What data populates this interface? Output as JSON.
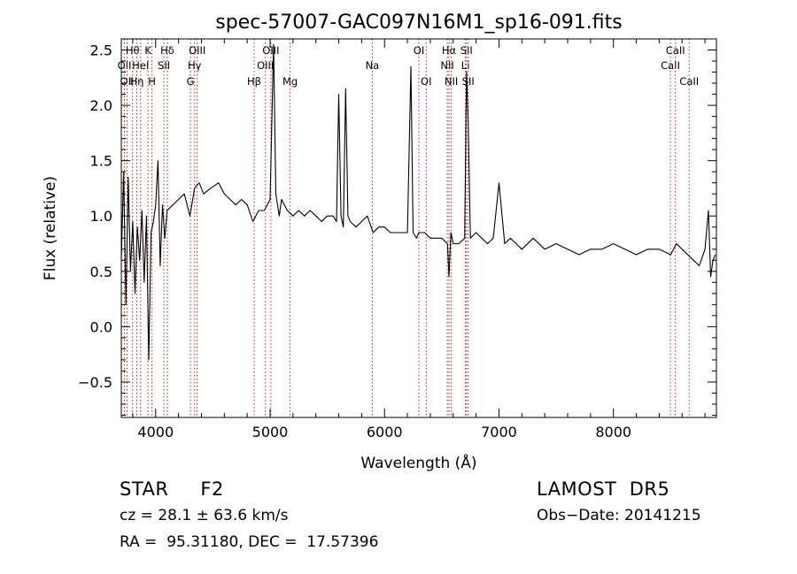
{
  "chart_data": {
    "type": "line",
    "title": "spec-57007-GAC097N16M1_sp16-091.fits",
    "xlabel": "Wavelength (Å)",
    "ylabel": "Flux (relative)",
    "xlim": [
      3700,
      8900
    ],
    "ylim": [
      -0.82,
      2.6
    ],
    "x_ticks": [
      4000,
      5000,
      6000,
      7000,
      8000
    ],
    "y_ticks": [
      -0.5,
      0.0,
      0.5,
      1.0,
      1.5,
      2.0,
      2.5
    ],
    "x_tick_labels": [
      "4000",
      "5000",
      "6000",
      "7000",
      "8000"
    ],
    "y_tick_labels": [
      "−0.5",
      "0.0",
      "0.5",
      "1.0",
      "1.5",
      "2.0",
      "2.5"
    ],
    "line_color": "#000000",
    "marker_color": "#b22222",
    "series": [
      {
        "x": [
          3700,
          3720,
          3740,
          3760,
          3780,
          3800,
          3820,
          3840,
          3860,
          3880,
          3900,
          3920,
          3940,
          3960,
          3980,
          4000,
          4020,
          4040,
          4060,
          4080,
          4100,
          4150,
          4200,
          4250,
          4300,
          4340,
          4380,
          4420,
          4480,
          4550,
          4600,
          4650,
          4700,
          4750,
          4800,
          4850,
          4900,
          4950,
          5000,
          5030,
          5050,
          5080,
          5100,
          5150,
          5200,
          5250,
          5300,
          5350,
          5400,
          5450,
          5500,
          5550,
          5580,
          5600,
          5620,
          5640,
          5660,
          5680,
          5700,
          5750,
          5800,
          5850,
          5900,
          5950,
          6000,
          6050,
          6100,
          6150,
          6200,
          6230,
          6250,
          6280,
          6300,
          6350,
          6400,
          6450,
          6500,
          6550,
          6563,
          6580,
          6600,
          6650,
          6700,
          6716,
          6731,
          6750,
          6800,
          6850,
          6900,
          6950,
          7000,
          7050,
          7100,
          7150,
          7200,
          7300,
          7400,
          7500,
          7600,
          7700,
          7800,
          7900,
          8000,
          8100,
          8200,
          8300,
          8400,
          8500,
          8550,
          8600,
          8650,
          8700,
          8750,
          8800,
          8830,
          8850,
          8870,
          8890
        ],
        "y": [
          0.6,
          1.4,
          0.2,
          1.35,
          0.5,
          0.95,
          0.3,
          0.9,
          0.6,
          1.05,
          0.4,
          1.0,
          -0.3,
          0.85,
          0.95,
          1.1,
          1.5,
          0.55,
          1.1,
          0.8,
          1.05,
          1.1,
          1.15,
          1.2,
          1.0,
          1.25,
          1.3,
          1.2,
          1.25,
          1.3,
          1.2,
          1.15,
          1.1,
          1.15,
          1.1,
          0.95,
          1.05,
          1.05,
          1.15,
          2.55,
          1.2,
          1.0,
          1.15,
          1.05,
          1.0,
          1.05,
          1.0,
          1.05,
          1.0,
          0.95,
          1.0,
          1.0,
          0.95,
          2.1,
          1.0,
          0.9,
          2.15,
          1.0,
          0.95,
          0.9,
          0.95,
          1.0,
          0.85,
          0.9,
          0.9,
          0.85,
          0.85,
          0.85,
          0.85,
          2.35,
          0.85,
          0.8,
          0.85,
          0.85,
          0.8,
          0.8,
          0.8,
          0.75,
          0.45,
          0.85,
          0.75,
          0.75,
          0.8,
          2.3,
          1.85,
          0.8,
          0.85,
          0.8,
          0.75,
          0.8,
          1.3,
          0.75,
          0.8,
          0.75,
          0.7,
          0.8,
          0.7,
          0.75,
          0.7,
          0.65,
          0.7,
          0.7,
          0.75,
          0.7,
          0.65,
          0.7,
          0.7,
          0.65,
          0.75,
          0.7,
          0.65,
          0.6,
          0.55,
          0.7,
          1.05,
          0.45,
          0.6,
          0.65
        ]
      }
    ],
    "lines": [
      {
        "x": 3727,
        "labels": [
          "OII"
        ],
        "row": 2
      },
      {
        "x": 3750,
        "labels": [
          "OII"
        ],
        "row": 3
      },
      {
        "x": 3798,
        "labels": [
          "Hθ"
        ],
        "row": 1
      },
      {
        "x": 3835,
        "labels": [
          "Hη"
        ],
        "row": 3
      },
      {
        "x": 3869,
        "labels": [
          "HeI"
        ],
        "row": 2
      },
      {
        "x": 3933,
        "labels": [
          "K"
        ],
        "row": 1
      },
      {
        "x": 3968,
        "labels": [
          "H"
        ],
        "row": 3
      },
      {
        "x": 4072,
        "labels": [
          "SII"
        ],
        "row": 2
      },
      {
        "x": 4102,
        "labels": [
          "Hδ"
        ],
        "row": 1
      },
      {
        "x": 4304,
        "labels": [
          "G"
        ],
        "row": 3
      },
      {
        "x": 4340,
        "labels": [
          "Hγ"
        ],
        "row": 2
      },
      {
        "x": 4363,
        "labels": [
          "OIII"
        ],
        "row": 1
      },
      {
        "x": 4861,
        "labels": [
          "Hβ"
        ],
        "row": 3
      },
      {
        "x": 4959,
        "labels": [
          "OIII"
        ],
        "row": 2
      },
      {
        "x": 5007,
        "labels": [
          "OIII"
        ],
        "row": 1
      },
      {
        "x": 5175,
        "labels": [
          "Mg"
        ],
        "row": 3
      },
      {
        "x": 5893,
        "labels": [
          "Na"
        ],
        "row": 2
      },
      {
        "x": 6300,
        "labels": [
          "OI"
        ],
        "row": 1
      },
      {
        "x": 6364,
        "labels": [
          "OI"
        ],
        "row": 3
      },
      {
        "x": 6548,
        "labels": [
          "NII"
        ],
        "row": 2
      },
      {
        "x": 6563,
        "labels": [
          "Hα"
        ],
        "row": 1
      },
      {
        "x": 6583,
        "labels": [
          "NII"
        ],
        "row": 3
      },
      {
        "x": 6707,
        "labels": [
          "Li"
        ],
        "row": 2
      },
      {
        "x": 6716,
        "labels": [
          "SII"
        ],
        "row": 1
      },
      {
        "x": 6731,
        "labels": [
          "SII"
        ],
        "row": 3
      },
      {
        "x": 8498,
        "labels": [
          "CaII"
        ],
        "row": 2
      },
      {
        "x": 8542,
        "labels": [
          "CaII"
        ],
        "row": 1
      },
      {
        "x": 8662,
        "labels": [
          "CaII"
        ],
        "row": 3
      }
    ]
  },
  "info": {
    "class": "STAR     F2",
    "survey": "LAMOST  DR5",
    "cz": "cz = 28.1 ± 63.6 km/s",
    "obs_date": "Obs−Date: 20141215",
    "coords": "RA =  95.31180, DEC =  17.57396"
  }
}
